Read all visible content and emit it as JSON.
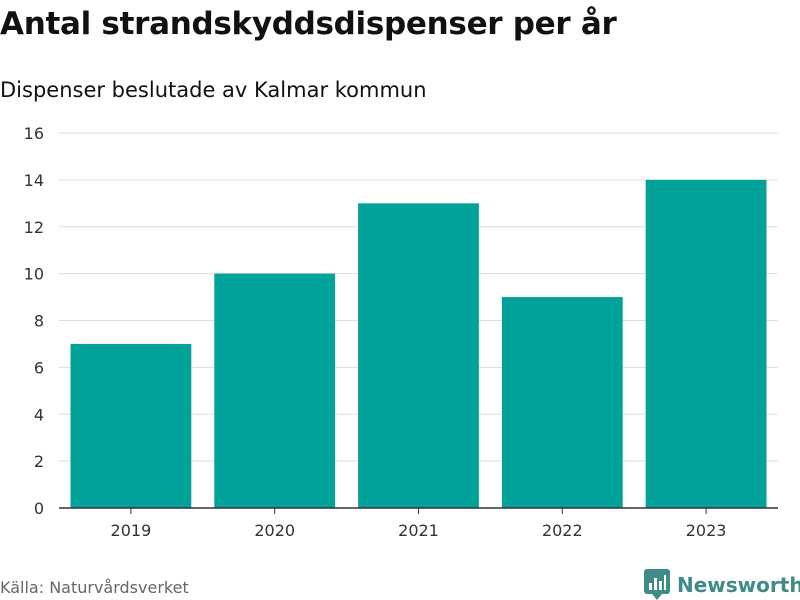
{
  "header": {
    "title": "Antal strandskyddsdispenser per år",
    "subtitle": "Dispenser beslutade av Kalmar kommun"
  },
  "footer": {
    "source": "Källa: Naturvårdsverket",
    "brand": "Newsworthy",
    "brand_color": "#3f8b87"
  },
  "chart_data": {
    "type": "bar",
    "title": "Antal strandskyddsdispenser per år",
    "subtitle": "Dispenser beslutade av Kalmar kommun",
    "categories": [
      "2019",
      "2020",
      "2021",
      "2022",
      "2023"
    ],
    "values": [
      7,
      10,
      13,
      9,
      14
    ],
    "xlabel": "",
    "ylabel": "",
    "ylim": [
      0,
      16
    ],
    "yticks": [
      0,
      2,
      4,
      6,
      8,
      10,
      12,
      14,
      16
    ],
    "grid": true,
    "bar_color": "#00a29a",
    "grid_color": "#dddddd",
    "axis_color": "#333333"
  }
}
